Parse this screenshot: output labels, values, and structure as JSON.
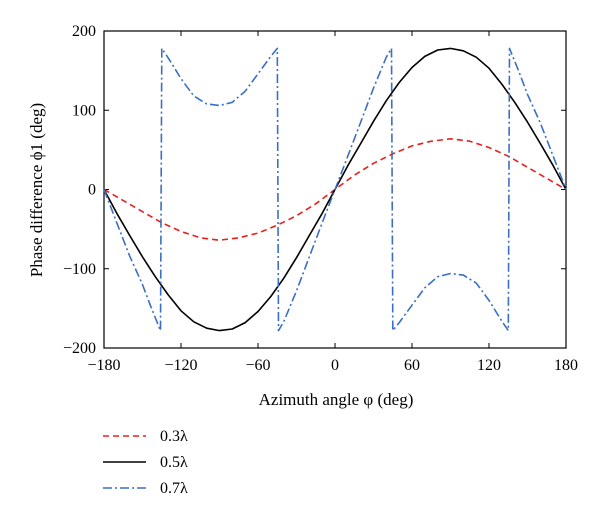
{
  "chart_data": {
    "type": "line",
    "xlabel": "Azimuth angle φ (deg)",
    "ylabel": "Phase difference ϕ1 (deg)",
    "xlim": [
      -180,
      180
    ],
    "ylim": [
      -200,
      200
    ],
    "xticks": [
      -180,
      -120,
      -60,
      0,
      60,
      120,
      180
    ],
    "yticks": [
      -200,
      -100,
      0,
      100,
      200
    ],
    "xtick_labels": [
      "−180",
      "−120",
      "−60",
      "0",
      "60",
      "120",
      "180"
    ],
    "ytick_labels": [
      "−200",
      "−100",
      "0",
      "100",
      "200"
    ],
    "grid": false,
    "legend_position": "below-left",
    "series": [
      {
        "name": "0.3λ",
        "color": "#e8201c",
        "style": "dashed",
        "x": [
          -180,
          -165,
          -150,
          -135,
          -120,
          -105,
          -90,
          -75,
          -60,
          -45,
          -30,
          -15,
          0,
          15,
          30,
          45,
          60,
          75,
          90,
          105,
          120,
          135,
          150,
          165,
          180
        ],
        "y": [
          0,
          -14,
          -28,
          -42,
          -53,
          -61,
          -64,
          -61,
          -55,
          -45,
          -33,
          -18,
          0,
          18,
          33,
          45,
          55,
          61,
          64,
          61,
          53,
          42,
          28,
          14,
          0
        ]
      },
      {
        "name": "0.5λ",
        "color": "#000000",
        "style": "solid",
        "x": [
          -180,
          -170,
          -160,
          -150,
          -140,
          -130,
          -120,
          -110,
          -100,
          -90,
          -80,
          -70,
          -60,
          -50,
          -40,
          -30,
          -20,
          -10,
          0,
          10,
          20,
          30,
          40,
          50,
          60,
          70,
          80,
          90,
          100,
          110,
          120,
          130,
          140,
          150,
          160,
          170,
          180
        ],
        "y": [
          0,
          -30,
          -58,
          -85,
          -110,
          -133,
          -153,
          -167,
          -175,
          -178,
          -176,
          -168,
          -154,
          -135,
          -112,
          -86,
          -58,
          -30,
          0,
          30,
          58,
          86,
          112,
          135,
          154,
          168,
          176,
          178,
          175,
          167,
          153,
          133,
          110,
          85,
          58,
          30,
          0
        ]
      },
      {
        "name": "0.7λ",
        "color": "#3a6fc4",
        "style": "dashdot",
        "x": [
          -180,
          -170,
          -160,
          -150,
          -143,
          -136,
          -135,
          -130,
          -120,
          -110,
          -100,
          -90,
          -80,
          -70,
          -60,
          -50,
          -45,
          -44,
          -40,
          -30,
          -20,
          -10,
          0,
          10,
          20,
          30,
          40,
          44,
          45,
          50,
          60,
          70,
          80,
          90,
          100,
          110,
          120,
          130,
          135,
          136,
          143,
          150,
          160,
          170,
          180
        ],
        "y": [
          0,
          -42,
          -84,
          -120,
          -150,
          -178,
          178,
          166,
          140,
          118,
          108,
          106,
          110,
          124,
          146,
          168,
          178,
          -178,
          -167,
          -128,
          -85,
          -42,
          0,
          42,
          85,
          128,
          167,
          178,
          -178,
          -168,
          -146,
          -124,
          -110,
          -106,
          -108,
          -118,
          -140,
          -166,
          -178,
          178,
          150,
          120,
          84,
          42,
          0
        ]
      }
    ]
  }
}
